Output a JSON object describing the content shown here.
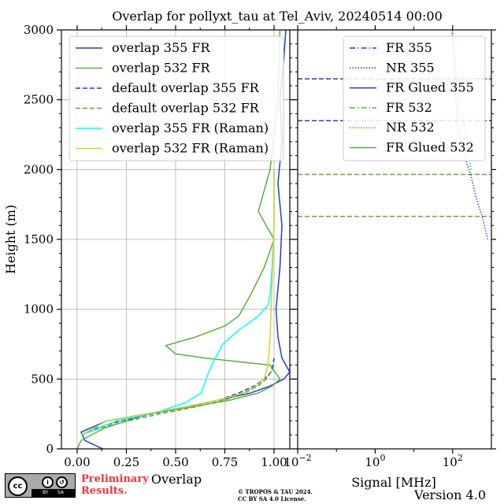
{
  "figure": {
    "title": "Overlap for pollyxt_tau at Tel_Aviv, 20240514 00:00",
    "prelim_line1": "Preliminary",
    "prelim_line2": "Results.",
    "copyright_line1": "© TROPOS & TAU 2024.",
    "copyright_line2": "CC BY SA 4.0 License.",
    "version": "Version 4.0",
    "license_badge": {
      "cc": "cc",
      "by": "BY",
      "sa": "SA"
    }
  },
  "chart_data": [
    {
      "type": "line",
      "panel": "overlap",
      "xlabel": "Overlap",
      "ylabel": "Height (m)",
      "xlim": [
        -0.08,
        1.08
      ],
      "ylim": [
        0,
        3000
      ],
      "xticks": [
        0.0,
        0.25,
        0.5,
        0.75,
        1.0
      ],
      "xtick_labels": [
        "0.00",
        "0.25",
        "0.50",
        "0.75",
        "1.00"
      ],
      "yticks": [
        0,
        500,
        1000,
        1500,
        2000,
        2500,
        3000
      ],
      "ytick_labels": [
        "0",
        "500",
        "1000",
        "1500",
        "2000",
        "2500",
        "3000"
      ],
      "grid": true,
      "legend_position": "top-left",
      "series": [
        {
          "name": "overlap 355 FR",
          "color": "#1f3fd1",
          "style": "solid",
          "x": [
            0.13,
            0.04,
            0.02,
            0.15,
            0.35,
            0.55,
            0.72,
            0.88,
            0.98,
            1.05,
            1.08,
            1.04,
            1.02,
            1.01,
            1.03,
            1.04,
            1.02,
            1.04,
            1.03,
            1.05,
            1.06
          ],
          "y": [
            0,
            60,
            120,
            200,
            250,
            300,
            350,
            400,
            450,
            500,
            550,
            650,
            800,
            1000,
            1300,
            1600,
            1900,
            2200,
            2500,
            2800,
            3000
          ]
        },
        {
          "name": "overlap 532 FR",
          "color": "#5aaf3c",
          "style": "solid",
          "x": [
            0.0,
            0.02,
            0.14,
            0.36,
            0.58,
            0.78,
            0.92,
            0.99,
            1.03,
            0.98,
            0.65,
            0.5,
            0.45,
            0.6,
            0.75,
            0.82,
            0.88,
            0.95,
            1.0,
            0.92,
            0.98,
            1.02,
            1.03
          ],
          "y": [
            0,
            60,
            150,
            250,
            300,
            350,
            400,
            450,
            500,
            600,
            650,
            680,
            740,
            800,
            880,
            950,
            1100,
            1300,
            1500,
            1700,
            2000,
            2500,
            3000
          ]
        },
        {
          "name": "default overlap 355 FR",
          "color": "#1f3fd1",
          "style": "dashed",
          "x": [
            0.02,
            0.1,
            0.22,
            0.38,
            0.55,
            0.72,
            0.82,
            0.9,
            0.95,
            0.985,
            0.995,
            1.0
          ],
          "y": [
            100,
            150,
            200,
            250,
            300,
            350,
            400,
            450,
            500,
            550,
            600,
            650
          ]
        },
        {
          "name": "default overlap 532 FR",
          "color": "#5aaf3c",
          "style": "dashed",
          "x": [
            0.02,
            0.12,
            0.26,
            0.42,
            0.6,
            0.75,
            0.85,
            0.92,
            0.96,
            0.985,
            1.0
          ],
          "y": [
            100,
            150,
            200,
            250,
            300,
            350,
            400,
            450,
            500,
            550,
            600
          ]
        },
        {
          "name": "overlap 355 FR (Raman)",
          "color": "#00ffff",
          "style": "solid",
          "x": [
            0.02,
            0.2,
            0.4,
            0.55,
            0.63,
            0.64,
            0.66,
            0.69,
            0.74,
            0.82,
            0.92,
            0.97,
            0.98,
            0.99,
            1.0,
            1.0
          ],
          "y": [
            100,
            200,
            260,
            330,
            400,
            440,
            520,
            620,
            750,
            850,
            950,
            1030,
            1100,
            1300,
            1600,
            2000
          ]
        },
        {
          "name": "overlap 532 FR (Raman)",
          "color": "#d4d42a",
          "style": "solid",
          "x": [
            0.02,
            0.15,
            0.35,
            0.55,
            0.72,
            0.84,
            0.91,
            0.95,
            0.97,
            0.98,
            0.99,
            1.0,
            1.0
          ],
          "y": [
            100,
            200,
            250,
            300,
            350,
            400,
            450,
            500,
            600,
            800,
            1200,
            1600,
            2000
          ]
        }
      ]
    },
    {
      "type": "line",
      "panel": "signal",
      "xlabel": "Signal [MHz]",
      "xscale": "log",
      "xlim": [
        0.01,
        1000
      ],
      "ylim": [
        0,
        3000
      ],
      "xticks": [
        0.01,
        1,
        100
      ],
      "xtick_labels": [
        "10",
        "10",
        "10"
      ],
      "xtick_exponents": [
        "−2",
        "0",
        "2"
      ],
      "grid": false,
      "legend_position": "top-right",
      "series": [
        {
          "name": "FR 355",
          "color": "#1f3fd1",
          "style": "dashdot",
          "x": [],
          "y": []
        },
        {
          "name": "NR 355",
          "color": "#1f3fd1",
          "style": "dotted",
          "x": [
            800,
            600,
            400,
            300,
            200,
            150,
            130,
            120,
            110,
            110,
            105,
            100,
            100
          ],
          "y": [
            1500,
            1650,
            1800,
            1950,
            2100,
            2250,
            2400,
            2550,
            2700,
            2800,
            2900,
            2950,
            3000
          ]
        },
        {
          "name": "FR Glued 355",
          "color": "#1f3fd1",
          "style": "solid",
          "x": [],
          "y": []
        },
        {
          "name": "FR 532",
          "color": "#5aaf3c",
          "style": "dashdot",
          "x": [],
          "y": []
        },
        {
          "name": "NR 532",
          "color": "#5aaf3c",
          "style": "dotted",
          "x": [
            300,
            250,
            200,
            150,
            130,
            120,
            110,
            100,
            100,
            95
          ],
          "y": [
            2000,
            2150,
            2300,
            2450,
            2600,
            2700,
            2800,
            2900,
            2950,
            3000
          ]
        },
        {
          "name": "FR Glued 532",
          "color": "#5aaf3c",
          "style": "solid",
          "x": [],
          "y": []
        }
      ],
      "hlines": [
        {
          "y": 2650,
          "color": "#1f3fd1"
        },
        {
          "y": 2350,
          "color": "#1f3fd1"
        },
        {
          "y": 1965,
          "color": "#5aaf3c"
        },
        {
          "y": 1665,
          "color": "#5aaf3c"
        }
      ]
    }
  ]
}
